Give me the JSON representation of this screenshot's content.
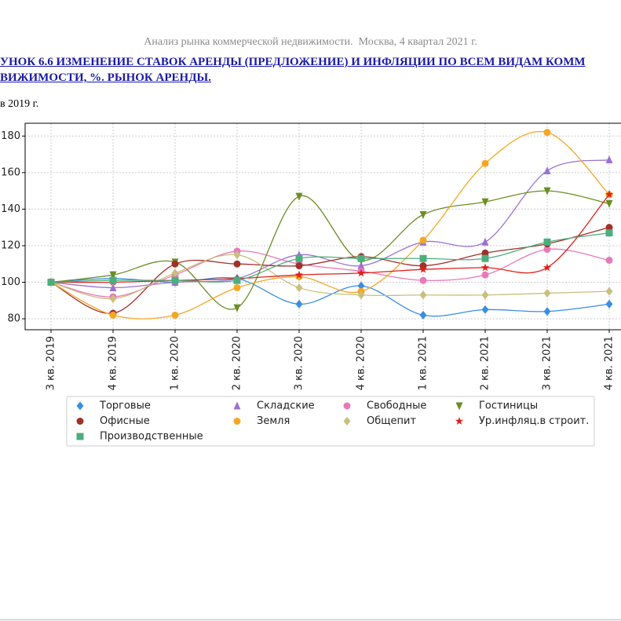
{
  "header": {
    "text": "Анализ рынка коммерческой недвижимости.  Москва, 4 квартал 2021 г.",
    "figure_title": [
      "УНОК 6.6 ИЗМЕНЕНИЕ СТАВОК АРЕНДЫ (ПРЕДЛОЖЕНИЕ) И ИНФЛЯЦИИ ПО ВСЕМ ВИДАМ КОММ",
      "ВИЖИМОСТИ, %. РЫНОК АРЕНДЫ."
    ],
    "subtitle": "в 2019 г."
  },
  "chart_data": {
    "type": "line",
    "smooth": true,
    "grid": true,
    "categories": [
      "3 кв. 2019",
      "4 кв. 2019",
      "1 кв. 2020",
      "2 кв. 2020",
      "3 кв. 2020",
      "4 кв. 2020",
      "1 кв. 2021",
      "2 кв. 2021",
      "3 кв. 2021",
      "4 кв. 2021"
    ],
    "ylim": [
      74,
      187
    ],
    "yticks": [
      80,
      100,
      120,
      140,
      160,
      180
    ],
    "series": [
      {
        "name": "Торговые",
        "color": "#3a8ee0",
        "marker": "diamond",
        "values": [
          100,
          102,
          100,
          102,
          88,
          98,
          82,
          85,
          84,
          88
        ]
      },
      {
        "name": "Складские",
        "color": "#9b72cf",
        "marker": "triangle-up",
        "values": [
          100,
          97,
          100,
          102,
          115,
          109,
          122,
          122,
          161,
          167
        ]
      },
      {
        "name": "Свободные",
        "color": "#e879b8",
        "marker": "circle",
        "values": [
          100,
          92,
          104,
          117,
          110,
          106,
          101,
          104,
          118,
          112
        ]
      },
      {
        "name": "Гостиницы",
        "color": "#6b8e23",
        "marker": "triangle-down",
        "values": [
          100,
          104,
          111,
          86,
          147,
          112,
          137,
          144,
          150,
          143
        ]
      },
      {
        "name": "Офисные",
        "color": "#a0312a",
        "marker": "circle",
        "values": [
          100,
          83,
          110,
          110,
          109,
          114,
          109,
          116,
          121,
          130
        ]
      },
      {
        "name": "Земля",
        "color": "#f5a623",
        "marker": "circle",
        "values": [
          100,
          82,
          82,
          97,
          103,
          95,
          123,
          165,
          182,
          148
        ]
      },
      {
        "name": "Общепит",
        "color": "#c9bf7e",
        "marker": "diamond",
        "values": [
          100,
          91,
          105,
          115,
          97,
          93,
          93,
          93,
          94,
          95
        ]
      },
      {
        "name": "Ур.инфляц.в строит.",
        "color": "#e0201b",
        "marker": "star",
        "values": [
          100,
          100,
          101,
          102,
          104,
          105,
          107,
          108,
          108,
          148
        ]
      },
      {
        "name": "Производственные",
        "color": "#4cae7c",
        "marker": "square",
        "values": [
          100,
          101,
          101,
          101,
          113,
          113,
          113,
          113,
          122,
          127
        ]
      }
    ]
  }
}
